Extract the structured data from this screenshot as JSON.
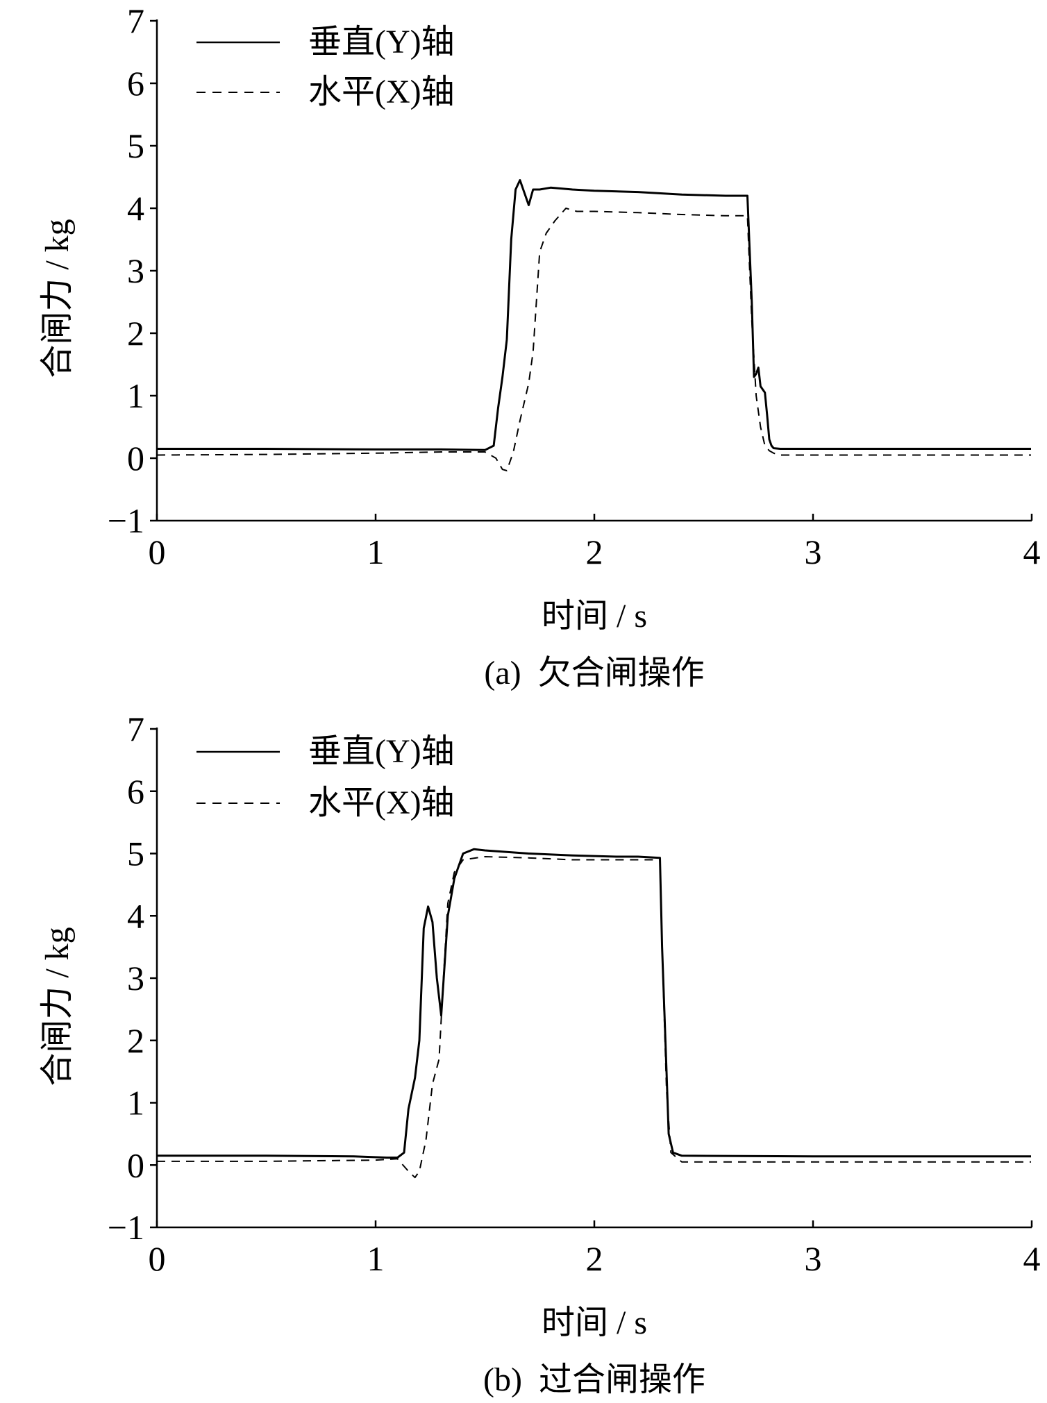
{
  "chart_data": [
    {
      "type": "line",
      "caption": "(a)  欠合闸操作",
      "xlabel": "时间 / s",
      "ylabel": "合闸力 / kg",
      "xlim": [
        0,
        4
      ],
      "ylim": [
        -1,
        7
      ],
      "xticks": [
        0,
        1,
        2,
        3,
        4
      ],
      "yticks": [
        -1,
        0,
        1,
        2,
        3,
        4,
        5,
        6,
        7
      ],
      "grid": false,
      "legend": "top-left",
      "series": [
        {
          "name": "垂直(Y)轴",
          "style": "solid",
          "color": "#000000",
          "x": [
            0,
            0.5,
            1.0,
            1.3,
            1.5,
            1.54,
            1.56,
            1.58,
            1.6,
            1.62,
            1.64,
            1.66,
            1.68,
            1.7,
            1.72,
            1.75,
            1.8,
            1.9,
            2.0,
            2.2,
            2.4,
            2.6,
            2.7,
            2.72,
            2.73,
            2.74,
            2.75,
            2.76,
            2.78,
            2.79,
            2.8,
            2.81,
            2.82,
            2.85,
            3.0,
            3.5,
            4.0
          ],
          "y": [
            0.15,
            0.15,
            0.14,
            0.14,
            0.13,
            0.2,
            0.8,
            1.3,
            1.9,
            3.5,
            4.3,
            4.45,
            4.25,
            4.05,
            4.3,
            4.3,
            4.33,
            4.3,
            4.28,
            4.26,
            4.22,
            4.2,
            4.2,
            2.5,
            1.3,
            1.35,
            1.45,
            1.15,
            1.05,
            0.7,
            0.3,
            0.2,
            0.16,
            0.15,
            0.15,
            0.15,
            0.15
          ]
        },
        {
          "name": "水平(X)轴",
          "style": "dashed",
          "color": "#000000",
          "x": [
            0,
            0.5,
            1.0,
            1.3,
            1.5,
            1.55,
            1.58,
            1.6,
            1.63,
            1.66,
            1.7,
            1.72,
            1.75,
            1.78,
            1.82,
            1.87,
            1.92,
            2.0,
            2.2,
            2.4,
            2.6,
            2.7,
            2.72,
            2.74,
            2.76,
            2.78,
            2.8,
            2.82,
            2.85,
            3.0,
            3.5,
            4.0
          ],
          "y": [
            0.05,
            0.06,
            0.08,
            0.1,
            0.1,
            0.0,
            -0.18,
            -0.2,
            0.1,
            0.6,
            1.2,
            1.7,
            3.3,
            3.6,
            3.8,
            4.0,
            3.95,
            3.95,
            3.93,
            3.9,
            3.88,
            3.88,
            2.2,
            1.0,
            0.5,
            0.2,
            0.12,
            0.08,
            0.05,
            0.05,
            0.05,
            0.05
          ]
        }
      ]
    },
    {
      "type": "line",
      "caption": "(b)  过合闸操作",
      "xlabel": "时间 / s",
      "ylabel": "合闸力 / kg",
      "xlim": [
        0,
        4
      ],
      "ylim": [
        -1,
        7
      ],
      "xticks": [
        0,
        1,
        2,
        3,
        4
      ],
      "yticks": [
        -1,
        0,
        1,
        2,
        3,
        4,
        5,
        6,
        7
      ],
      "grid": false,
      "legend": "top-left",
      "series": [
        {
          "name": "垂直(Y)轴",
          "style": "solid",
          "color": "#000000",
          "x": [
            0,
            0.5,
            0.9,
            1.05,
            1.1,
            1.13,
            1.15,
            1.18,
            1.2,
            1.22,
            1.24,
            1.26,
            1.28,
            1.3,
            1.33,
            1.36,
            1.4,
            1.45,
            1.5,
            1.7,
            1.9,
            2.1,
            2.2,
            2.3,
            2.31,
            2.33,
            2.34,
            2.36,
            2.4,
            3.0,
            3.5,
            4.0
          ],
          "y": [
            0.15,
            0.15,
            0.14,
            0.12,
            0.12,
            0.2,
            0.9,
            1.4,
            2.0,
            3.8,
            4.15,
            3.9,
            3.0,
            2.4,
            4.0,
            4.6,
            5.0,
            5.07,
            5.05,
            5.0,
            4.97,
            4.95,
            4.95,
            4.93,
            3.5,
            1.5,
            0.5,
            0.2,
            0.15,
            0.14,
            0.14,
            0.14
          ]
        },
        {
          "name": "水平(X)轴",
          "style": "dashed",
          "color": "#000000",
          "x": [
            0,
            0.5,
            1.0,
            1.1,
            1.15,
            1.18,
            1.2,
            1.23,
            1.26,
            1.29,
            1.31,
            1.33,
            1.36,
            1.4,
            1.5,
            1.7,
            1.9,
            2.1,
            2.3,
            2.31,
            2.33,
            2.35,
            2.4,
            3.0,
            4.0
          ],
          "y": [
            0.06,
            0.06,
            0.08,
            0.1,
            -0.1,
            -0.2,
            -0.1,
            0.4,
            1.3,
            1.7,
            3.0,
            4.2,
            4.7,
            4.9,
            4.95,
            4.93,
            4.9,
            4.9,
            4.9,
            3.5,
            1.2,
            0.2,
            0.05,
            0.05,
            0.05
          ]
        }
      ]
    }
  ]
}
